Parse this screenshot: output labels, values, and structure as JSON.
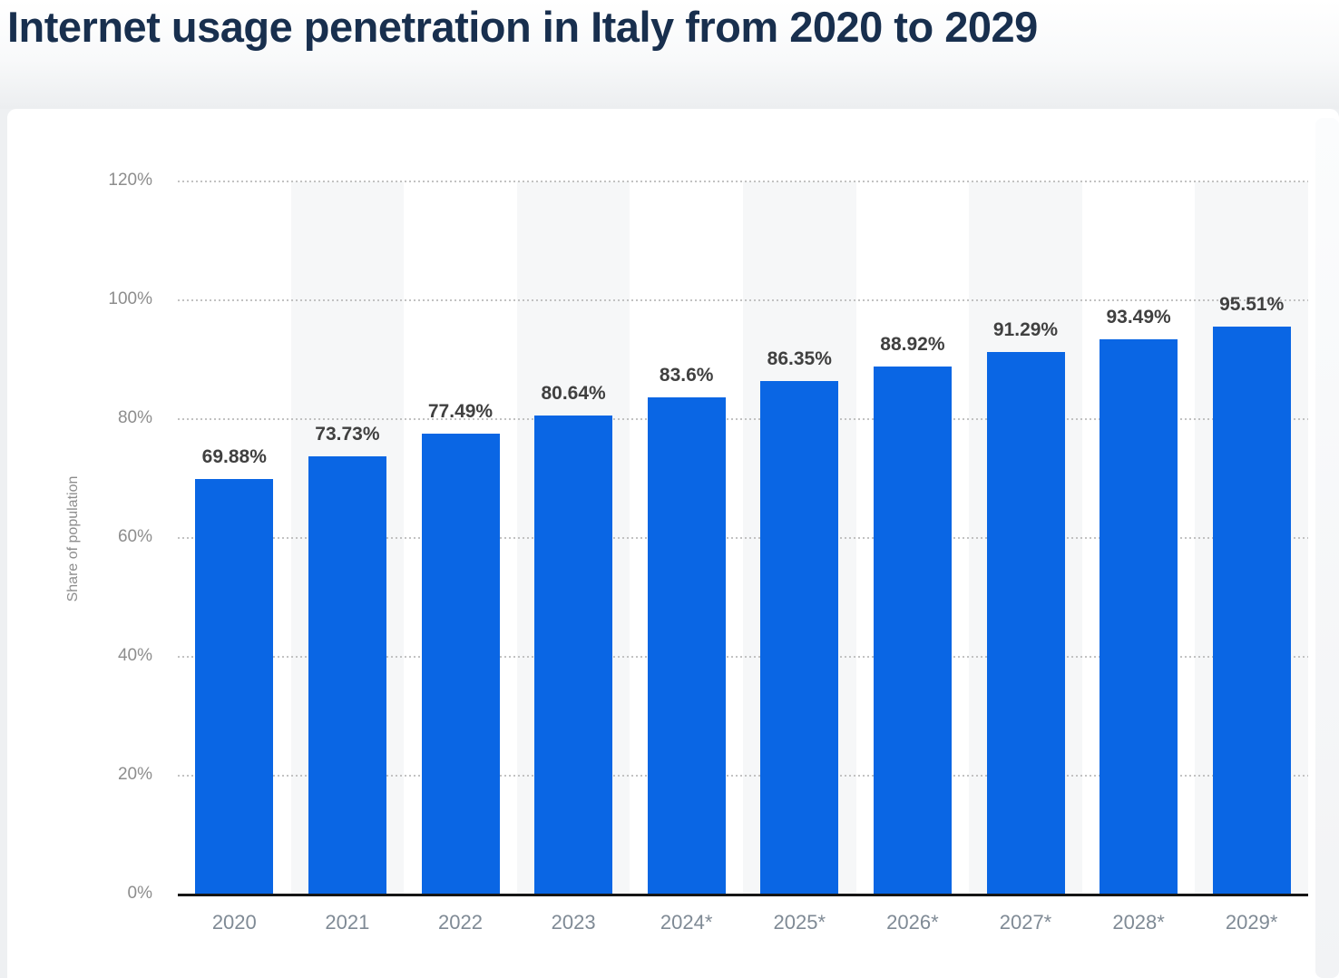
{
  "page": {
    "title": "Internet usage penetration in Italy from 2020 to 2029"
  },
  "chart_data": {
    "type": "bar",
    "title": "Internet usage penetration in Italy from 2020 to 2029",
    "categories": [
      "2020",
      "2021",
      "2022",
      "2023",
      "2024*",
      "2025*",
      "2026*",
      "2027*",
      "2028*",
      "2029*"
    ],
    "values": [
      69.88,
      73.73,
      77.49,
      80.64,
      83.6,
      86.35,
      88.92,
      91.29,
      93.49,
      95.51
    ],
    "value_labels": [
      "69.88%",
      "73.73%",
      "77.49%",
      "80.64%",
      "83.6%",
      "86.35%",
      "88.92%",
      "91.29%",
      "93.49%",
      "95.51%"
    ],
    "xlabel": "",
    "ylabel": "Share of population",
    "ylim": [
      0,
      120
    ],
    "ytick_step": 20,
    "ytick_labels": [
      "0%",
      "20%",
      "40%",
      "60%",
      "80%",
      "100%",
      "120%"
    ],
    "grid": "horizontal-dotted",
    "legend": "none",
    "alternating_column_stripes": true,
    "colors": {
      "bar": "#0a66e4",
      "title": "#182f4e",
      "value_label": "#404040",
      "axis_tick": "#8d8d8d",
      "x_tick": "#7f8a95",
      "stripe": "#f6f7f8",
      "gridline": "#c2c2c2",
      "axis_line": "#161616",
      "card_bg": "#ffffff"
    }
  }
}
